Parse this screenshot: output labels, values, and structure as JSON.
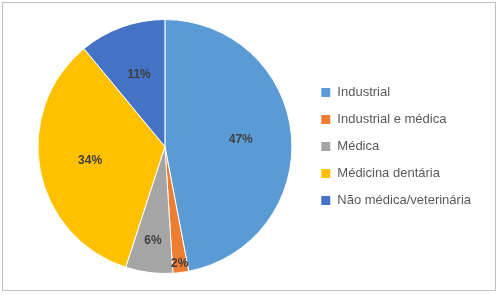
{
  "chart_data": {
    "type": "pie",
    "categories": [
      "Industrial",
      "Industrial e médica",
      "Médica",
      "Médicina dentária",
      "Não médica/veterinária"
    ],
    "values": [
      47,
      2,
      6,
      34,
      11
    ],
    "value_labels": [
      "47%",
      "2%",
      "6%",
      "34%",
      "11%"
    ],
    "colors": [
      "#5b9bd5",
      "#ed7d31",
      "#a5a5a5",
      "#ffc000",
      "#4472c4"
    ],
    "legend": "right",
    "data_labels": true
  }
}
